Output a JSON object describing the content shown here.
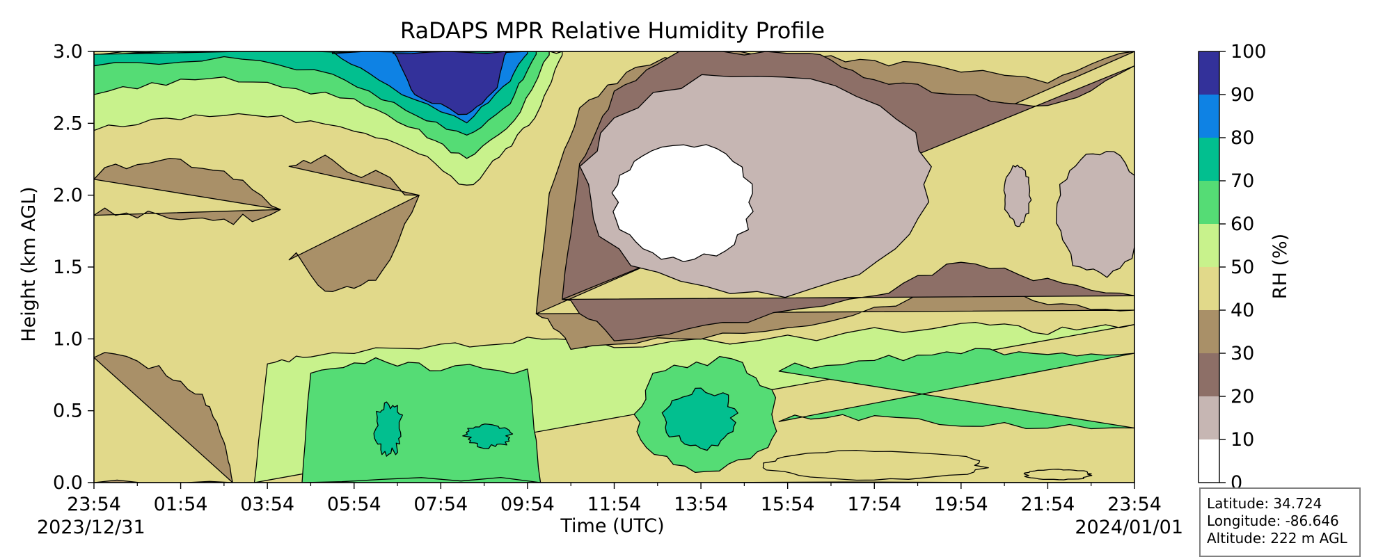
{
  "chart_data": {
    "type": "heatmap",
    "subtype": "filled-contour",
    "title": "RaDAPS MPR Relative Humidity Profile",
    "xlabel": "Time (UTC)",
    "ylabel": "Height (km AGL)",
    "x_tick_labels": [
      "23:54",
      "01:54",
      "03:54",
      "05:54",
      "07:54",
      "09:54",
      "11:54",
      "13:54",
      "15:54",
      "17:54",
      "19:54",
      "21:54",
      "23:54"
    ],
    "x_start_date": "2023/12/31",
    "x_end_date": "2024/01/01",
    "ylim": [
      0,
      3.0
    ],
    "y_ticks": [
      "0.0",
      "0.5",
      "1.0",
      "1.5",
      "2.0",
      "2.5",
      "3.0"
    ],
    "colorbar": {
      "label": "RH (%)",
      "levels": [
        0,
        10,
        20,
        30,
        40,
        50,
        60,
        70,
        80,
        90,
        100
      ],
      "colors": [
        "#ffffff",
        "#c6b6b3",
        "#8d6f67",
        "#a99068",
        "#e1d98a",
        "#c8f28c",
        "#55dc75",
        "#02bf8f",
        "#0e82e4",
        "#33319a"
      ]
    },
    "grid": false,
    "regions_rh_percent": [
      {
        "time": "23:54-03:30",
        "height_km": "0.0-0.9",
        "rh": "30-40"
      },
      {
        "time": "23:54-03:54",
        "height_km": "1.0-2.3",
        "rh": "40-50 with 30-40 pockets"
      },
      {
        "time": "05:00-09:54",
        "height_km": "0.0-0.8",
        "rh": "60-70"
      },
      {
        "time": "06:30-09:00",
        "height_km": "2.5-3.0",
        "rh": "90-100"
      },
      {
        "time": "11:00-18:30",
        "height_km": "1.4-2.8",
        "rh": "10-20"
      },
      {
        "time": "11:54-14:30",
        "height_km": "1.5-2.3",
        "rh": "0-10"
      },
      {
        "time": "12:30-15:00",
        "height_km": "0.3-0.7",
        "rh": "70-80"
      },
      {
        "time": "15:30-23:54",
        "height_km": "0.4-0.9",
        "rh": "60-70"
      },
      {
        "time": "21:00-23:54",
        "height_km": "1.4-2.4",
        "rh": "10-20"
      }
    ]
  },
  "info": {
    "latitude": "Latitude: 34.724",
    "longitude": "Longitude: -86.646",
    "altitude": "Altitude: 222 m AGL"
  }
}
